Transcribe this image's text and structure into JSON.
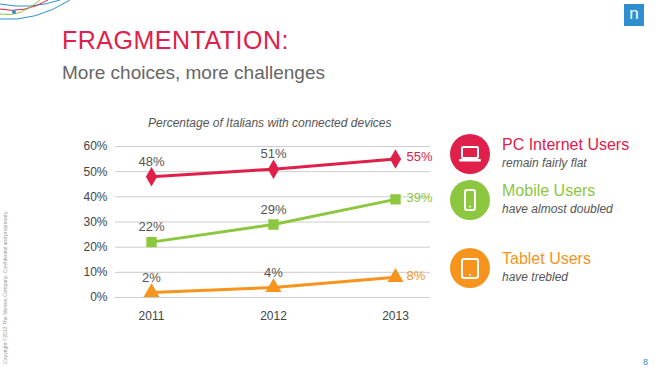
{
  "page": {
    "title": "FRAGMENTATION:",
    "subtitle": "More choices, more challenges",
    "page_number": "8",
    "logo": "n",
    "copyright": "Copyright ©2013 The Nielsen Company. Confidential and proprietary."
  },
  "chart_data": {
    "type": "line",
    "title": "Percentage of Italians with connected devices",
    "categories": [
      "2011",
      "2012",
      "2013"
    ],
    "series": [
      {
        "name": "PC Internet Users",
        "color": "#e0204a",
        "marker": "diamond",
        "values": [
          48,
          51,
          55
        ],
        "value_labels": [
          "48%",
          "51%",
          "55%"
        ]
      },
      {
        "name": "Mobile Users",
        "color": "#8dc63f",
        "marker": "square",
        "values": [
          22,
          29,
          39
        ],
        "value_labels": [
          "22%",
          "29%",
          "39%"
        ]
      },
      {
        "name": "Tablet Users",
        "color": "#f7941d",
        "marker": "triangle",
        "values": [
          2,
          4,
          8
        ],
        "value_labels": [
          "2%",
          "4%",
          "8%"
        ]
      }
    ],
    "ylim": [
      0,
      60
    ],
    "yticks": [
      {
        "value": 0,
        "label": "0%"
      },
      {
        "value": 10,
        "label": "10%"
      },
      {
        "value": 20,
        "label": "20%"
      },
      {
        "value": 30,
        "label": "30%"
      },
      {
        "value": 40,
        "label": "40%"
      },
      {
        "value": 50,
        "label": "50%"
      },
      {
        "value": 60,
        "label": "60%"
      }
    ],
    "grid": true,
    "data_labels": true,
    "annotations": [
      {
        "series": "PC Internet Users",
        "text": "remain fairly flat"
      },
      {
        "series": "Mobile Users",
        "text": "have almost doubled"
      },
      {
        "series": "Tablet Users",
        "text": "have trebled"
      }
    ]
  }
}
